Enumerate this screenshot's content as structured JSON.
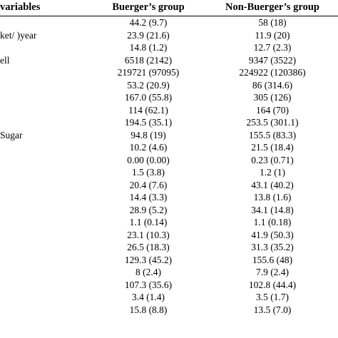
{
  "header": {
    "variables": "variables",
    "col1": "Buerger’s group",
    "col2": "Non-Buerger’s group"
  },
  "rows": [
    {
      "label": "",
      "b": "44.2 (9.7)",
      "nb": "58 (18)"
    },
    {
      "label": "ket/ )year",
      "b": "23.9 (21.6)",
      "nb": "11.9 (20)"
    },
    {
      "label": "",
      "b": "14.8 (1.2)",
      "nb": "12.7 (2.3)"
    },
    {
      "label": "ell",
      "b": "6518 (2142)",
      "nb": "9347 (3522)"
    },
    {
      "label": "",
      "b": "219721 (97095)",
      "nb": "224922 (120386)"
    },
    {
      "label": "",
      "b": "53.2 (20.9)",
      "nb": "86 (314.6)"
    },
    {
      "label": "",
      "b": "167.0 (55.8)",
      "nb": "305 (126)"
    },
    {
      "label": "",
      "b": "114 (62.1)",
      "nb": "164 (70)"
    },
    {
      "label": "",
      "b": "194.5 (35.1)",
      "nb": "253.5 (301.1)"
    },
    {
      "label": " Sugar",
      "b": "94.8 (19)",
      "nb": "155.5 (83.3)"
    },
    {
      "label": "",
      "b": "10.2 (4.6)",
      "nb": "21.5 (18.4)"
    },
    {
      "label": "",
      "b": "0.00 (0.00)",
      "nb": "0.23 (0.71)"
    },
    {
      "label": "",
      "b": "1.5 (3.8)",
      "nb": "1.2 (1)"
    },
    {
      "label": "",
      "b": "20.4 (7.6)",
      "nb": "43.1 (40.2)"
    },
    {
      "label": "",
      "b": "14.4 (3.3)",
      "nb": "13.8 (1.6)"
    },
    {
      "label": "",
      "b": "28.9 (5.2)",
      "nb": "34.1 (14.8)"
    },
    {
      "label": "",
      "b": "1.1 (0.14)",
      "nb": "1.1 (0.18)"
    },
    {
      "label": "",
      "b": "23.1 (10.3)",
      "nb": "41.9 (50.3)"
    },
    {
      "label": "",
      "b": "26.5 (18.3)",
      "nb": "31.3 (35.2)"
    },
    {
      "label": "",
      "b": "129.3 (45.2)",
      "nb": "155.6 (48)"
    },
    {
      "label": "",
      "b": "8 (2.4)",
      "nb": "7.9 (2.4)"
    },
    {
      "label": "",
      "b": "107.3 (35.6)",
      "nb": "102.8 (44.4)"
    },
    {
      "label": "",
      "b": "3.4 (1.4)",
      "nb": "3.5 (1.7)"
    },
    {
      "label": "",
      "b": "15.8 (8.8)",
      "nb": "13.5 (7.0)"
    }
  ]
}
